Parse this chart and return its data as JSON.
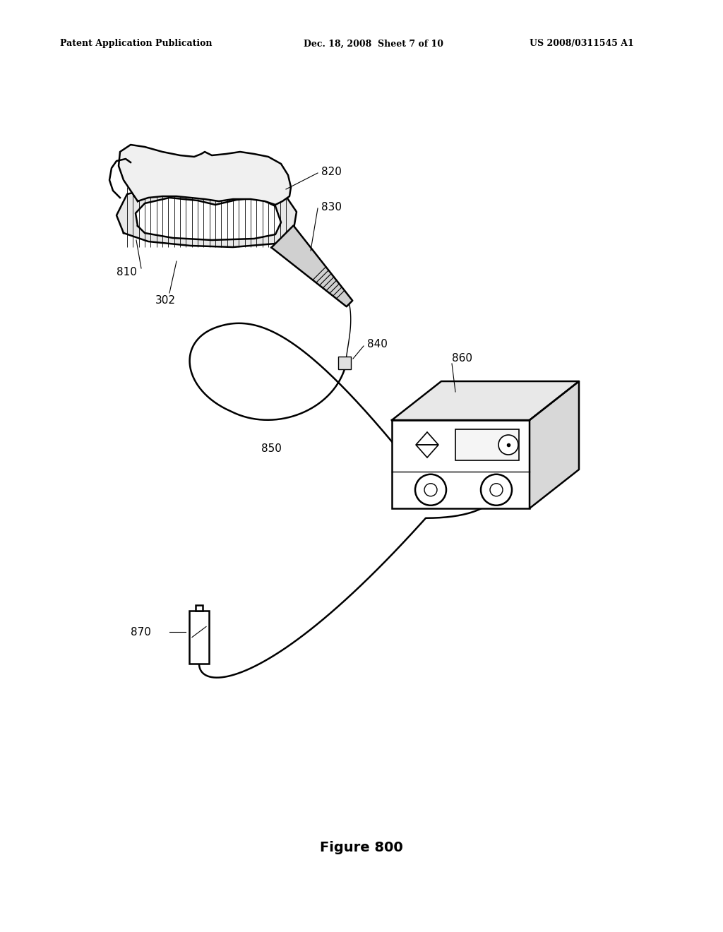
{
  "background_color": "#ffffff",
  "header_left": "Patent Application Publication",
  "header_mid": "Dec. 18, 2008  Sheet 7 of 10",
  "header_right": "US 2008/0311545 A1",
  "figure_label": "Figure 800",
  "line_color": "#000000",
  "text_color": "#000000",
  "label_fs": 11,
  "header_fs": 9
}
